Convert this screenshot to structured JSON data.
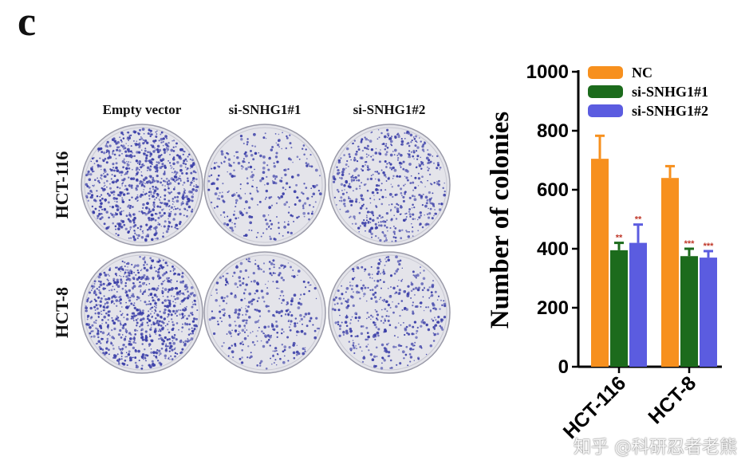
{
  "panel_letter": "c",
  "plates": {
    "columns": [
      "Empty vector",
      "si-SNHG1#1",
      "si-SNHG1#2"
    ],
    "rows": [
      "HCT-116",
      "HCT-8"
    ],
    "colony_density": [
      [
        0.95,
        0.35,
        0.6
      ],
      [
        0.95,
        0.4,
        0.45
      ]
    ],
    "colony_color": "#3b3fa8",
    "plate_color": "#e4e4ea"
  },
  "chart_data": {
    "type": "bar",
    "categories": [
      "HCT-116",
      "HCT-8"
    ],
    "series": [
      {
        "name": "NC",
        "values": [
          705,
          640
        ],
        "errors": [
          78,
          40
        ],
        "color": "#f7901e",
        "significance": [
          "",
          ""
        ]
      },
      {
        "name": "si-SNHG1#1",
        "values": [
          395,
          375
        ],
        "errors": [
          25,
          25
        ],
        "color": "#1c6b1c",
        "significance": [
          "**",
          "***"
        ]
      },
      {
        "name": "si-SNHG1#2",
        "values": [
          420,
          370
        ],
        "errors": [
          62,
          22
        ],
        "color": "#5b5ce0",
        "significance": [
          "**",
          "***"
        ]
      }
    ],
    "ylabel": "Number of colonies",
    "xlabel": "",
    "ylim": [
      0,
      1000
    ],
    "yticks": [
      0,
      200,
      400,
      600,
      800,
      1000
    ],
    "legend_position": "top-right",
    "significance_color": "#c0392b"
  },
  "watermark": "知乎 @科研忍者老熊"
}
